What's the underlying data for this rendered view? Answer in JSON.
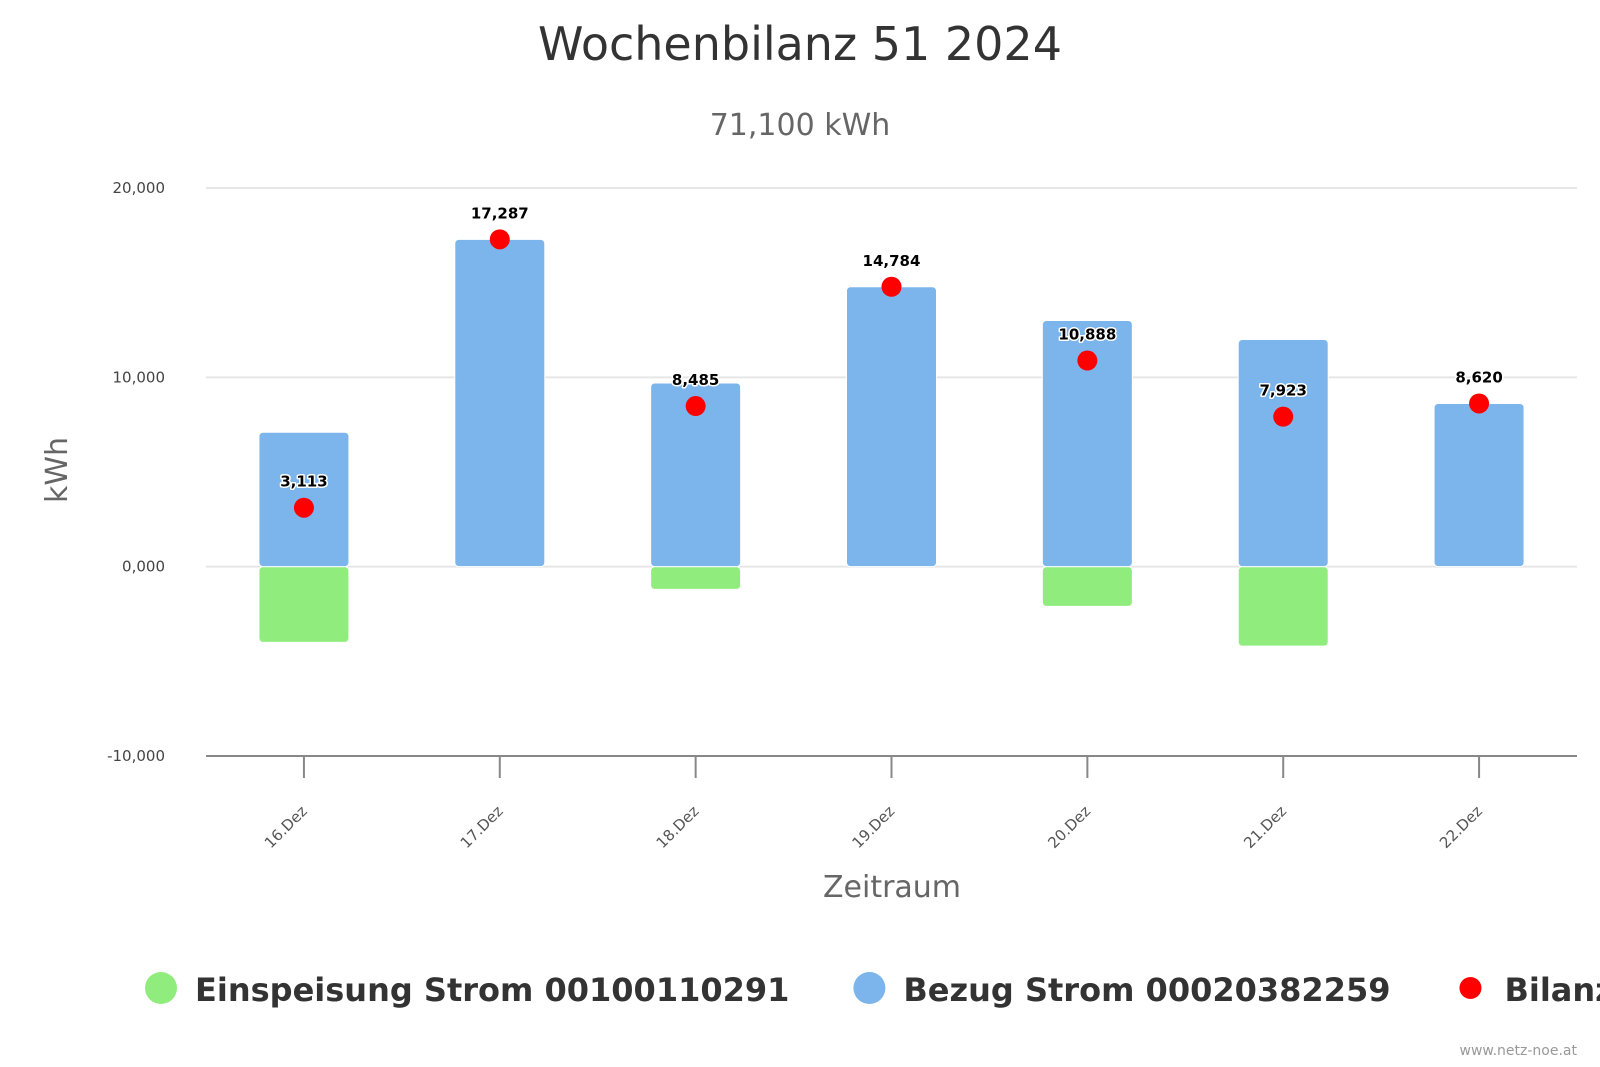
{
  "chart_data": {
    "type": "bar",
    "title": "Wochenbilanz 51 2024",
    "subtitle": "71,100 kWh",
    "xlabel": "Zeitraum",
    "ylabel": "kWh",
    "ylim": [
      -10000,
      20000
    ],
    "y_ticks": [
      {
        "value": 20000,
        "label": "20,000"
      },
      {
        "value": 10000,
        "label": "10,000"
      },
      {
        "value": 0,
        "label": "0,000"
      },
      {
        "value": -10000,
        "label": "-10,000"
      }
    ],
    "grid": true,
    "categories": [
      "16.Dez",
      "17.Dez",
      "18.Dez",
      "19.Dez",
      "20.Dez",
      "21.Dez",
      "22.Dez"
    ],
    "series": [
      {
        "name": "Einspeisung Strom 00100110291",
        "type": "bar",
        "color": "#90ed7d",
        "values": [
          -4000,
          0,
          -1200,
          0,
          -2100,
          -4200,
          0
        ]
      },
      {
        "name": "Bezug Strom 00020382259",
        "type": "bar",
        "color": "#7cb5ec",
        "values": [
          7100,
          17287,
          9700,
          14784,
          13000,
          12000,
          8620
        ]
      },
      {
        "name": "Bilanz",
        "type": "scatter",
        "color": "#ff0000",
        "values": [
          3113,
          17287,
          8485,
          14784,
          10888,
          7923,
          8620
        ],
        "labels": [
          "3,113",
          "17,287",
          "8,485",
          "14,784",
          "10,888",
          "7,923",
          "8,620"
        ]
      }
    ],
    "legend_position": "bottom"
  },
  "credits": "www.netz-noe.at"
}
